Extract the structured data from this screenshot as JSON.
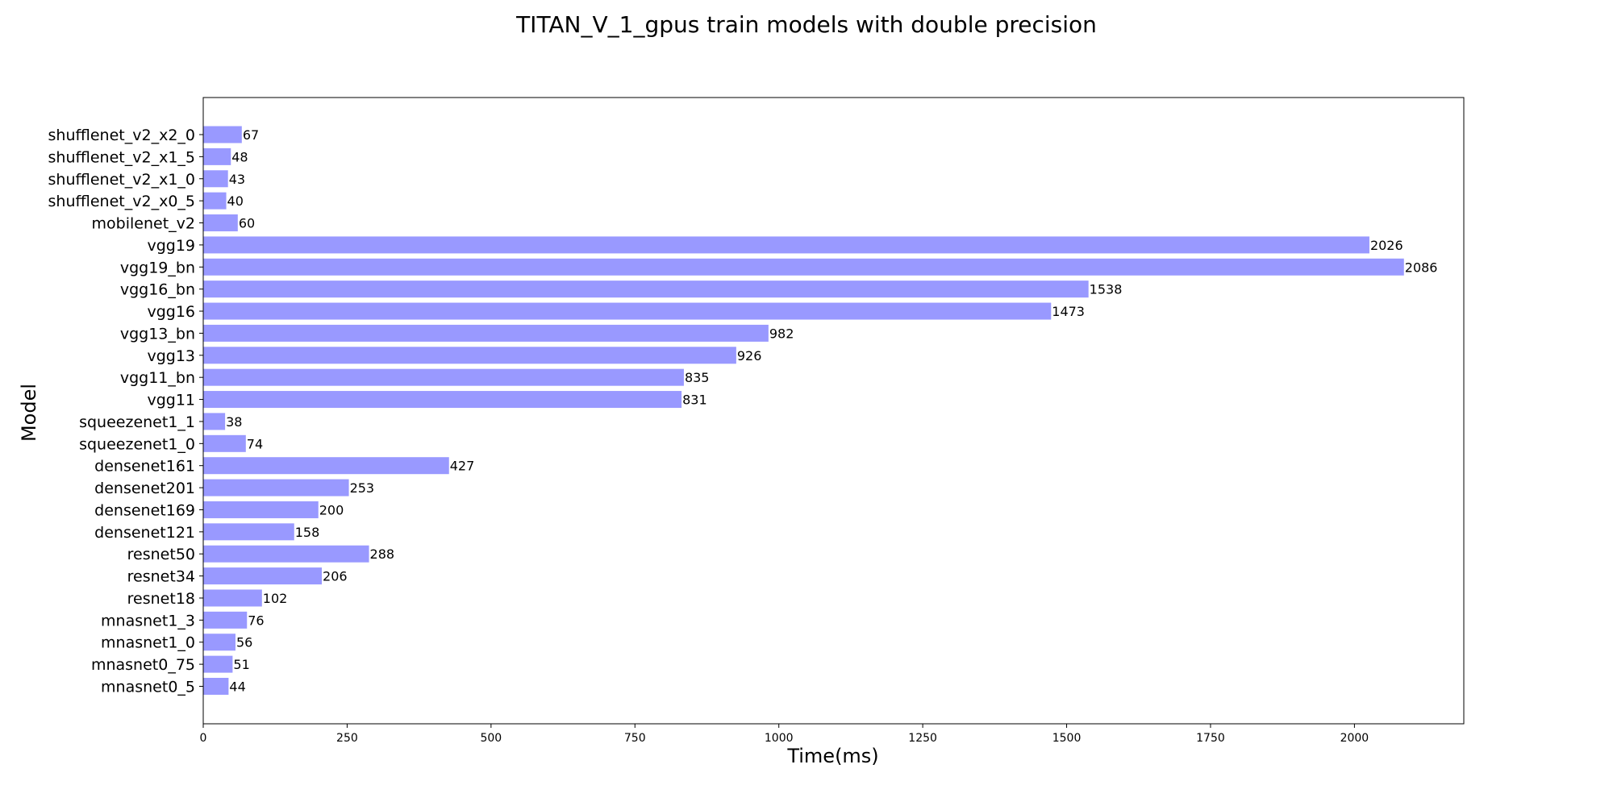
{
  "chart_data": {
    "type": "bar",
    "orientation": "horizontal",
    "title": "TITAN_V_1_gpus train models with double precision",
    "xlabel": "Time(ms)",
    "ylabel": "Model",
    "xlim": [
      0,
      2190
    ],
    "xticks": [
      0,
      250,
      500,
      750,
      1000,
      1250,
      1500,
      1750,
      2000
    ],
    "grid": false,
    "legend": "none",
    "bar_color": "#9999ff",
    "categories": [
      "mnasnet0_5",
      "mnasnet0_75",
      "mnasnet1_0",
      "mnasnet1_3",
      "resnet18",
      "resnet34",
      "resnet50",
      "densenet121",
      "densenet169",
      "densenet201",
      "densenet161",
      "squeezenet1_0",
      "squeezenet1_1",
      "vgg11",
      "vgg11_bn",
      "vgg13",
      "vgg13_bn",
      "vgg16",
      "vgg16_bn",
      "vgg19_bn",
      "vgg19",
      "mobilenet_v2",
      "shufflenet_v2_x0_5",
      "shufflenet_v2_x1_0",
      "shufflenet_v2_x1_5",
      "shufflenet_v2_x2_0"
    ],
    "values": [
      44,
      51,
      56,
      76,
      102,
      206,
      288,
      158,
      200,
      253,
      427,
      74,
      38,
      831,
      835,
      926,
      982,
      1473,
      1538,
      2086,
      2026,
      60,
      40,
      43,
      48,
      67
    ]
  }
}
